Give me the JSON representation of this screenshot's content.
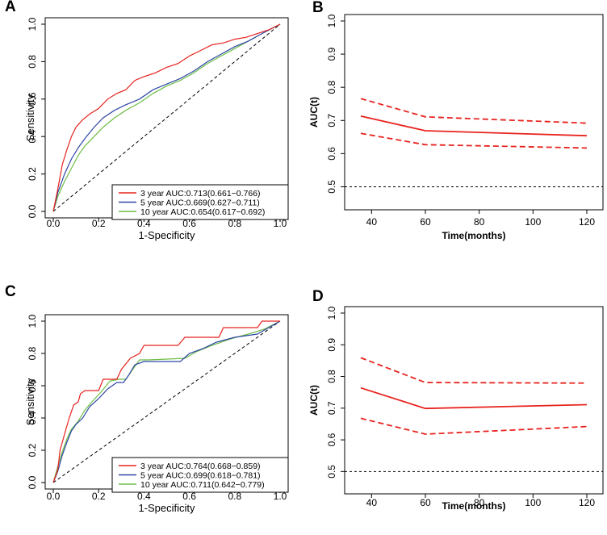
{
  "figure_labels": [
    "A",
    "B",
    "C",
    "D"
  ],
  "colors": {
    "red": "#e8231f",
    "blue": "#2f47a6",
    "green": "#6cbd45",
    "black": "#000000"
  },
  "chart_data": [
    {
      "id": "A",
      "type": "line",
      "title": "",
      "xlabel": "1-Specificity",
      "ylabel": "Sensitivity",
      "xlim": [
        0,
        1
      ],
      "ylim": [
        0,
        1
      ],
      "x_ticks": [
        "0.0",
        "0.2",
        "0.4",
        "0.6",
        "0.8",
        "1.0"
      ],
      "y_ticks": [
        "0.0",
        "0.2",
        "0.4",
        "0.6",
        "0.8",
        "1.0"
      ],
      "legend": "bottom-right",
      "diagonal": true,
      "series": [
        {
          "name": "3 year AUC:0.713(0.661−0.766)",
          "color": "red",
          "points": [
            [
              0,
              0
            ],
            [
              0.02,
              0.12
            ],
            [
              0.04,
              0.25
            ],
            [
              0.06,
              0.33
            ],
            [
              0.08,
              0.4
            ],
            [
              0.1,
              0.45
            ],
            [
              0.13,
              0.49
            ],
            [
              0.16,
              0.52
            ],
            [
              0.2,
              0.55
            ],
            [
              0.24,
              0.6
            ],
            [
              0.28,
              0.63
            ],
            [
              0.32,
              0.65
            ],
            [
              0.36,
              0.7
            ],
            [
              0.4,
              0.72
            ],
            [
              0.45,
              0.74
            ],
            [
              0.5,
              0.77
            ],
            [
              0.55,
              0.79
            ],
            [
              0.6,
              0.83
            ],
            [
              0.65,
              0.86
            ],
            [
              0.7,
              0.89
            ],
            [
              0.75,
              0.9
            ],
            [
              0.8,
              0.92
            ],
            [
              0.85,
              0.93
            ],
            [
              0.9,
              0.95
            ],
            [
              0.95,
              0.97
            ],
            [
              1,
              1
            ]
          ]
        },
        {
          "name": "5 year AUC:0.669(0.627−0.711)",
          "color": "blue",
          "points": [
            [
              0,
              0
            ],
            [
              0.02,
              0.1
            ],
            [
              0.05,
              0.2
            ],
            [
              0.08,
              0.28
            ],
            [
              0.11,
              0.34
            ],
            [
              0.14,
              0.39
            ],
            [
              0.18,
              0.45
            ],
            [
              0.22,
              0.5
            ],
            [
              0.27,
              0.54
            ],
            [
              0.32,
              0.57
            ],
            [
              0.38,
              0.6
            ],
            [
              0.44,
              0.65
            ],
            [
              0.5,
              0.68
            ],
            [
              0.56,
              0.71
            ],
            [
              0.62,
              0.75
            ],
            [
              0.68,
              0.8
            ],
            [
              0.74,
              0.84
            ],
            [
              0.8,
              0.88
            ],
            [
              0.86,
              0.91
            ],
            [
              0.92,
              0.95
            ],
            [
              1,
              1
            ]
          ]
        },
        {
          "name": "10 year AUC:0.654(0.617−0.692)",
          "color": "green",
          "points": [
            [
              0,
              0
            ],
            [
              0.02,
              0.08
            ],
            [
              0.05,
              0.16
            ],
            [
              0.08,
              0.23
            ],
            [
              0.11,
              0.3
            ],
            [
              0.14,
              0.35
            ],
            [
              0.18,
              0.4
            ],
            [
              0.22,
              0.45
            ],
            [
              0.27,
              0.5
            ],
            [
              0.32,
              0.54
            ],
            [
              0.38,
              0.58
            ],
            [
              0.44,
              0.63
            ],
            [
              0.5,
              0.67
            ],
            [
              0.56,
              0.7
            ],
            [
              0.62,
              0.74
            ],
            [
              0.68,
              0.79
            ],
            [
              0.74,
              0.83
            ],
            [
              0.8,
              0.87
            ],
            [
              0.86,
              0.91
            ],
            [
              0.92,
              0.95
            ],
            [
              1,
              1
            ]
          ]
        }
      ]
    },
    {
      "id": "B",
      "type": "line",
      "title": "",
      "xlabel": "Time(months)",
      "ylabel": "AUC(t)",
      "xlim": [
        33,
        123
      ],
      "ylim": [
        0.45,
        1.0
      ],
      "x_ticks": [
        40,
        60,
        80,
        100,
        120
      ],
      "y_ticks": [
        "0.5",
        "0.6",
        "0.7",
        "0.8",
        "0.9",
        "1.0"
      ],
      "hline": 0.5,
      "x": [
        36,
        60,
        120
      ],
      "auc": [
        0.713,
        0.669,
        0.654
      ],
      "lower": [
        0.661,
        0.627,
        0.617
      ],
      "upper": [
        0.766,
        0.711,
        0.692
      ]
    },
    {
      "id": "C",
      "type": "line",
      "title": "",
      "xlabel": "1-Specificity",
      "ylabel": "Sensitivity",
      "xlim": [
        0,
        1
      ],
      "ylim": [
        0,
        1
      ],
      "x_ticks": [
        "0.0",
        "0.2",
        "0.4",
        "0.6",
        "0.8",
        "1.0"
      ],
      "y_ticks": [
        "0.0",
        "0.2",
        "0.4",
        "0.6",
        "0.8",
        "1.0"
      ],
      "legend": "bottom-right",
      "diagonal": true,
      "series": [
        {
          "name": "3 year AUC:0.764(0.668−0.859)",
          "color": "red",
          "points": [
            [
              0,
              0
            ],
            [
              0.02,
              0.08
            ],
            [
              0.03,
              0.2
            ],
            [
              0.05,
              0.3
            ],
            [
              0.07,
              0.4
            ],
            [
              0.09,
              0.48
            ],
            [
              0.11,
              0.5
            ],
            [
              0.12,
              0.55
            ],
            [
              0.14,
              0.57
            ],
            [
              0.2,
              0.57
            ],
            [
              0.22,
              0.64
            ],
            [
              0.28,
              0.64
            ],
            [
              0.3,
              0.7
            ],
            [
              0.34,
              0.77
            ],
            [
              0.38,
              0.8
            ],
            [
              0.4,
              0.85
            ],
            [
              0.55,
              0.85
            ],
            [
              0.58,
              0.9
            ],
            [
              0.73,
              0.9
            ],
            [
              0.75,
              0.96
            ],
            [
              0.9,
              0.96
            ],
            [
              0.92,
              1.0
            ],
            [
              1,
              1
            ]
          ]
        },
        {
          "name": "5 year AUC:0.699(0.618−0.781)",
          "color": "blue",
          "points": [
            [
              0,
              0
            ],
            [
              0.02,
              0.07
            ],
            [
              0.04,
              0.17
            ],
            [
              0.06,
              0.25
            ],
            [
              0.08,
              0.32
            ],
            [
              0.1,
              0.36
            ],
            [
              0.13,
              0.4
            ],
            [
              0.16,
              0.47
            ],
            [
              0.2,
              0.52
            ],
            [
              0.24,
              0.58
            ],
            [
              0.28,
              0.62
            ],
            [
              0.31,
              0.62
            ],
            [
              0.33,
              0.66
            ],
            [
              0.36,
              0.73
            ],
            [
              0.4,
              0.75
            ],
            [
              0.56,
              0.75
            ],
            [
              0.6,
              0.8
            ],
            [
              0.66,
              0.83
            ],
            [
              0.72,
              0.87
            ],
            [
              0.8,
              0.9
            ],
            [
              0.9,
              0.92
            ],
            [
              0.95,
              0.96
            ],
            [
              1,
              1
            ]
          ]
        },
        {
          "name": "10 year AUC:0.711(0.642−0.779)",
          "color": "green",
          "points": [
            [
              0,
              0
            ],
            [
              0.02,
              0.1
            ],
            [
              0.04,
              0.19
            ],
            [
              0.06,
              0.27
            ],
            [
              0.08,
              0.33
            ],
            [
              0.11,
              0.38
            ],
            [
              0.14,
              0.45
            ],
            [
              0.17,
              0.5
            ],
            [
              0.21,
              0.56
            ],
            [
              0.25,
              0.63
            ],
            [
              0.29,
              0.64
            ],
            [
              0.32,
              0.64
            ],
            [
              0.35,
              0.7
            ],
            [
              0.38,
              0.76
            ],
            [
              0.42,
              0.76
            ],
            [
              0.58,
              0.77
            ],
            [
              0.63,
              0.81
            ],
            [
              0.7,
              0.85
            ],
            [
              0.78,
              0.89
            ],
            [
              0.86,
              0.92
            ],
            [
              0.93,
              0.95
            ],
            [
              1,
              1
            ]
          ]
        }
      ]
    },
    {
      "id": "D",
      "type": "line",
      "title": "",
      "xlabel": "Time(months)",
      "ylabel": "AUC(t)",
      "xlim": [
        33,
        123
      ],
      "ylim": [
        0.45,
        1.0
      ],
      "x_ticks": [
        40,
        60,
        80,
        100,
        120
      ],
      "y_ticks": [
        "0.5",
        "0.6",
        "0.7",
        "0.8",
        "0.9",
        "1.0"
      ],
      "hline": 0.5,
      "x": [
        36,
        60,
        120
      ],
      "auc": [
        0.764,
        0.699,
        0.711
      ],
      "lower": [
        0.668,
        0.618,
        0.642
      ],
      "upper": [
        0.859,
        0.781,
        0.779
      ]
    }
  ]
}
